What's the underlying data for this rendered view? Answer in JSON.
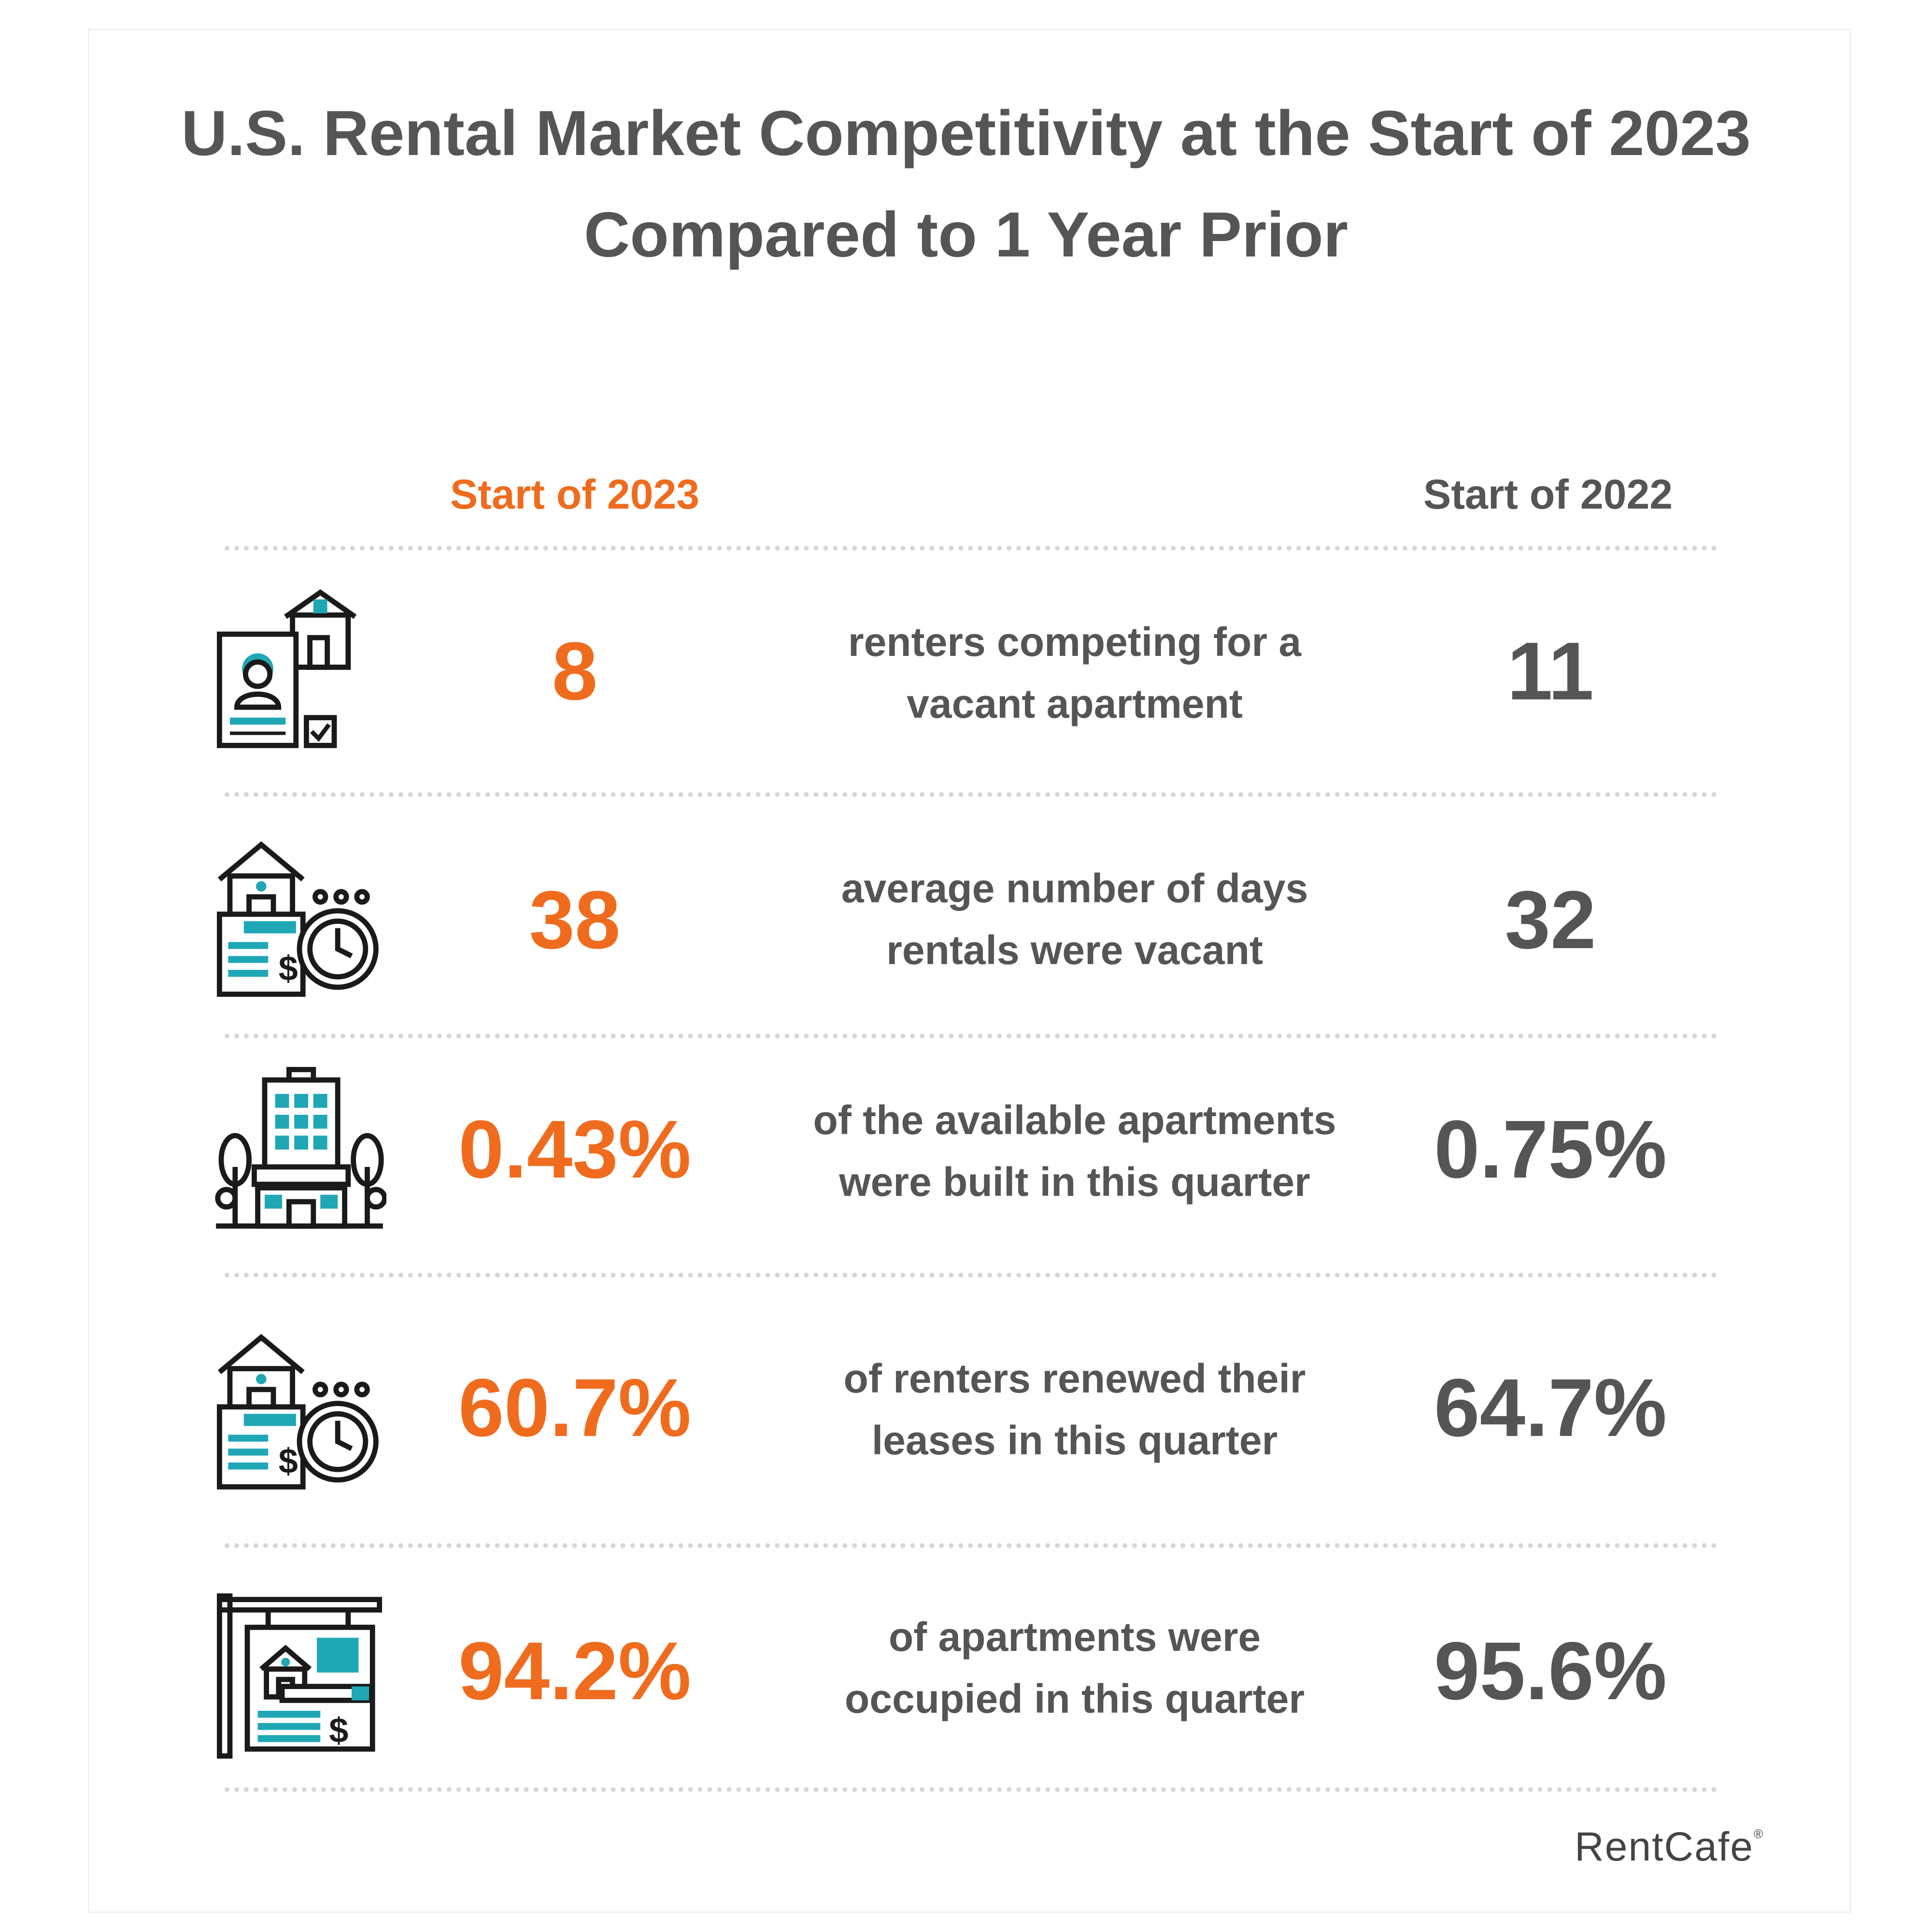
{
  "title": {
    "line1": "U.S. Rental Market Competitivity at the Start of 2023",
    "line2": "Compared to 1 Year Prior"
  },
  "columns": {
    "current": "Start of 2023",
    "previous": "Start of 2022"
  },
  "colors": {
    "accent": "#ef6c1e",
    "text": "#555555",
    "icon_teal": "#1fa7b5",
    "divider": "#d6d6d6"
  },
  "rows": [
    {
      "icon": "renter-application-icon",
      "value_2023": "8",
      "desc_line1": "renters competing for a",
      "desc_line2": "vacant apartment",
      "value_2022": "11"
    },
    {
      "icon": "rental-vacancy-timer-icon",
      "value_2023": "38",
      "desc_line1": "average number of days",
      "desc_line2": "rentals were vacant",
      "value_2022": "32"
    },
    {
      "icon": "apartment-building-icon",
      "value_2023": "0.43%",
      "desc_line1": "of the available apartments",
      "desc_line2": "were built in this quarter",
      "value_2022": "0.75%"
    },
    {
      "icon": "lease-renewal-timer-icon",
      "value_2023": "60.7%",
      "desc_line1": "of renters renewed their",
      "desc_line2": "leases in this quarter",
      "value_2022": "64.7%"
    },
    {
      "icon": "occupancy-sign-icon",
      "value_2023": "94.2%",
      "desc_line1": "of apartments were",
      "desc_line2": "occupied in this quarter",
      "value_2022": "95.6%"
    }
  ],
  "logo": {
    "text": "RentCafe",
    "mark": "®"
  }
}
